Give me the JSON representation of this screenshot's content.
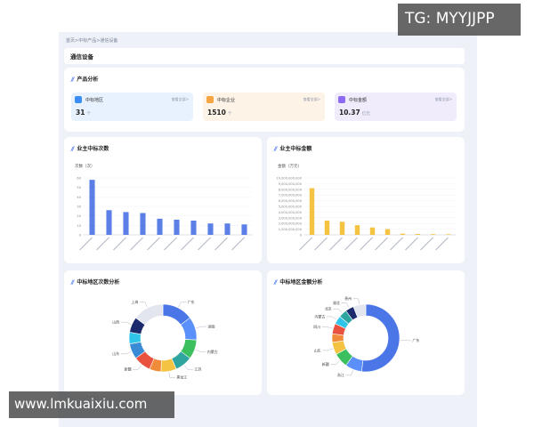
{
  "breadcrumb": "首页>中标产品>通信设备",
  "page_title": "通信设备",
  "product_analysis": {
    "title": "产品分析",
    "stats": [
      {
        "label": "中标地区",
        "value": "31",
        "unit": "个",
        "link": "查看全部>",
        "bg": "#e8f1fe",
        "icon_color": "#3b8cf5",
        "icon": "map-pin-icon"
      },
      {
        "label": "中标企业",
        "value": "1510",
        "unit": "个",
        "link": "查看全部>",
        "bg": "#fdf3e7",
        "icon_color": "#f5a442",
        "icon": "building-icon"
      },
      {
        "label": "中标金额",
        "value": "10.37",
        "unit": "亿元",
        "link": "查看全部>",
        "bg": "#f1ecfc",
        "icon_color": "#8b6cf0",
        "icon": "coin-icon"
      }
    ]
  },
  "bar_count": {
    "title": "业主中标次数",
    "ylabel": "次数（次）",
    "color": "#5b7fe6"
  },
  "bar_amount": {
    "title": "业主中标金额",
    "ylabel": "金额（万元）",
    "color": "#f5c342"
  },
  "donut_count": {
    "title": "中标地区次数分析"
  },
  "donut_amount": {
    "title": "中标地区金额分析"
  },
  "watermarks": {
    "top": "TG: MYYJJPP",
    "bottom": "www.lmkuaixiu.com"
  },
  "chart_data": [
    {
      "type": "bar",
      "title": "业主中标次数",
      "ylabel": "次数（次）",
      "ylim": [
        0,
        60
      ],
      "yticks": [
        "0",
        "10",
        "20",
        "30",
        "40",
        "50",
        "60"
      ],
      "categories": [
        "",
        "",
        "",
        "",
        "",
        "",
        "",
        "",
        "",
        ""
      ],
      "values": [
        58,
        26,
        24,
        23,
        17,
        16,
        15,
        12,
        12,
        11
      ]
    },
    {
      "type": "bar",
      "title": "业主中标金额",
      "ylabel": "金额（万元）",
      "ylim": [
        0,
        10000000000
      ],
      "yticks": [
        "0",
        "1,000,000,000",
        "2,000,000,000",
        "3,000,000,000",
        "4,000,000,000",
        "5,000,000,000",
        "6,000,000,000",
        "7,000,000,000",
        "8,000,000,000",
        "9,000,000,000",
        "10,000,000,000"
      ],
      "categories": [
        "",
        "",
        "",
        "",
        "",
        "",
        "",
        "",
        "",
        ""
      ],
      "values": [
        8200000000,
        2500000000,
        2300000000,
        1700000000,
        1300000000,
        1000000000,
        200000000,
        150000000,
        120000000,
        100000000
      ]
    },
    {
      "type": "pie",
      "title": "中标地区次数分析",
      "donut": true,
      "slices": [
        {
          "label": "广东",
          "value": 16,
          "color": "#4a76e8"
        },
        {
          "label": "湖南",
          "value": 12,
          "color": "#5b8ff9"
        },
        {
          "label": "内蒙古",
          "value": 10,
          "color": "#3cbf5e"
        },
        {
          "label": "江苏",
          "value": 9,
          "color": "#2fa5a0"
        },
        {
          "label": "黑龙江",
          "value": 8,
          "color": "#f5c342"
        },
        {
          "label": "",
          "value": 6,
          "color": "#f08b3a"
        },
        {
          "label": "新疆",
          "value": 9,
          "color": "#e8523f"
        },
        {
          "label": "山东",
          "value": 8,
          "color": "#3a8bd6"
        },
        {
          "label": "",
          "value": 6,
          "color": "#30c4e8"
        },
        {
          "label": "山西",
          "value": 8,
          "color": "#1a2a6c"
        },
        {
          "label": "上海",
          "value": 16,
          "color": "#e3e6ee"
        }
      ]
    },
    {
      "type": "pie",
      "title": "中标地区金额分析",
      "donut": true,
      "slices": [
        {
          "label": "广东",
          "value": 52,
          "color": "#4a76e8"
        },
        {
          "label": "浙江",
          "value": 8,
          "color": "#5b8ff9"
        },
        {
          "label": "新疆",
          "value": 7,
          "color": "#3cbf5e"
        },
        {
          "label": "山东",
          "value": 6,
          "color": "#f5c342"
        },
        {
          "label": "",
          "value": 4,
          "color": "#f08b3a"
        },
        {
          "label": "四川",
          "value": 5,
          "color": "#e8523f"
        },
        {
          "label": "内蒙古",
          "value": 4,
          "color": "#30c4e8"
        },
        {
          "label": "北京",
          "value": 4,
          "color": "#2fa5a0"
        },
        {
          "label": "湖北",
          "value": 4,
          "color": "#1a2a6c"
        },
        {
          "label": "贵州",
          "value": 6,
          "color": "#e3e6ee"
        }
      ]
    }
  ]
}
